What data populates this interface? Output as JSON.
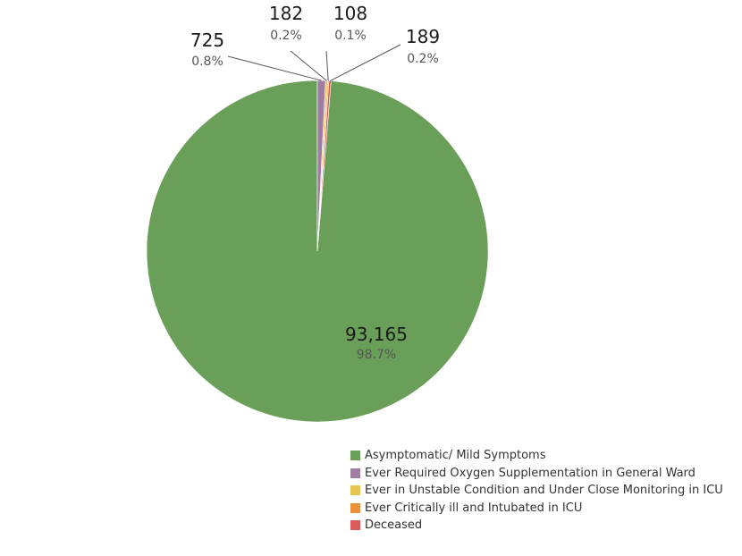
{
  "chart_data": {
    "type": "pie",
    "categories": [
      "Asymptomatic/ Mild Symptoms",
      "Ever Required Oxygen Supplementation in General Ward",
      "Ever in Unstable Condition and Under Close Monitoring in ICU",
      "Ever Critically ill and Intubated in ICU",
      "Deceased"
    ],
    "values": [
      93165,
      725,
      182,
      108,
      189
    ],
    "value_labels": [
      "93,165",
      "725",
      "182",
      "108",
      "189"
    ],
    "percent_labels": [
      "98.7%",
      "0.8%",
      "0.2%",
      "0.1%",
      "0.2%"
    ],
    "colors": [
      "#6a9f59",
      "#a07ea3",
      "#e8c454",
      "#e8903a",
      "#d85c5c"
    ],
    "legend_position": "bottom-right"
  }
}
